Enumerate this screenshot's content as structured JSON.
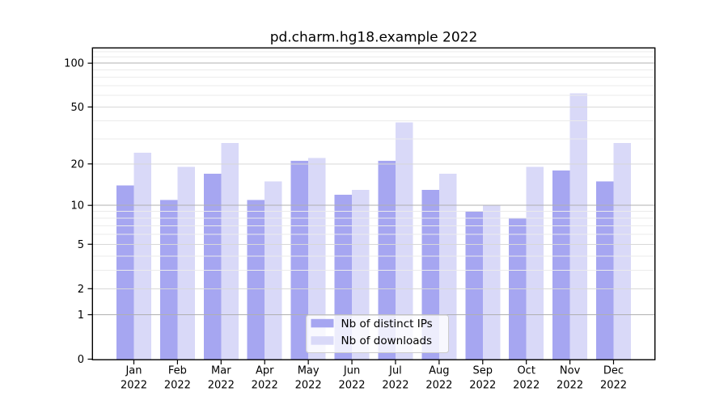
{
  "chart_data": {
    "type": "bar",
    "title": "pd.charm.hg18.example 2022",
    "categories": [
      "Jan",
      "Feb",
      "Mar",
      "Apr",
      "May",
      "Jun",
      "Jul",
      "Aug",
      "Sep",
      "Oct",
      "Nov",
      "Dec"
    ],
    "category_year": "2022",
    "series": [
      {
        "name": "Nb of distinct IPs",
        "color": "#a6a6f1",
        "values": [
          14,
          11,
          17,
          11,
          21,
          12,
          21,
          13,
          9,
          8,
          18,
          15
        ]
      },
      {
        "name": "Nb of downloads",
        "color": "#d9d9f8",
        "values": [
          24,
          19,
          28,
          15,
          22,
          13,
          39,
          17,
          10,
          19,
          62,
          28
        ]
      }
    ],
    "xlabel": "",
    "ylabel": "",
    "yscale": "log1p",
    "ylim": [
      0,
      126
    ],
    "yticks": [
      0,
      1,
      2,
      5,
      10,
      20,
      50,
      100
    ],
    "grid": {
      "on": true,
      "decade_lines": [
        1,
        10,
        100
      ],
      "major_lines": [
        2,
        5,
        20,
        50
      ],
      "minor_lines": [
        3,
        4,
        6,
        7,
        8,
        9,
        30,
        40,
        60,
        70,
        80,
        90,
        110,
        120
      ]
    },
    "legend": {
      "position": "inside-bottom-center",
      "entries": [
        "Nb of distinct IPs",
        "Nb of downloads"
      ]
    }
  },
  "colors": {
    "bar_distinct_ips": "#a6a6f1",
    "bar_downloads": "#d9d9f8",
    "grid_decade": "#b0b0b0",
    "grid_major": "#d8d8d8",
    "grid_minor": "#ebebeb",
    "axis": "#000000",
    "legend_border": "#cccccc",
    "legend_background": "#ffffff",
    "background": "#ffffff"
  }
}
